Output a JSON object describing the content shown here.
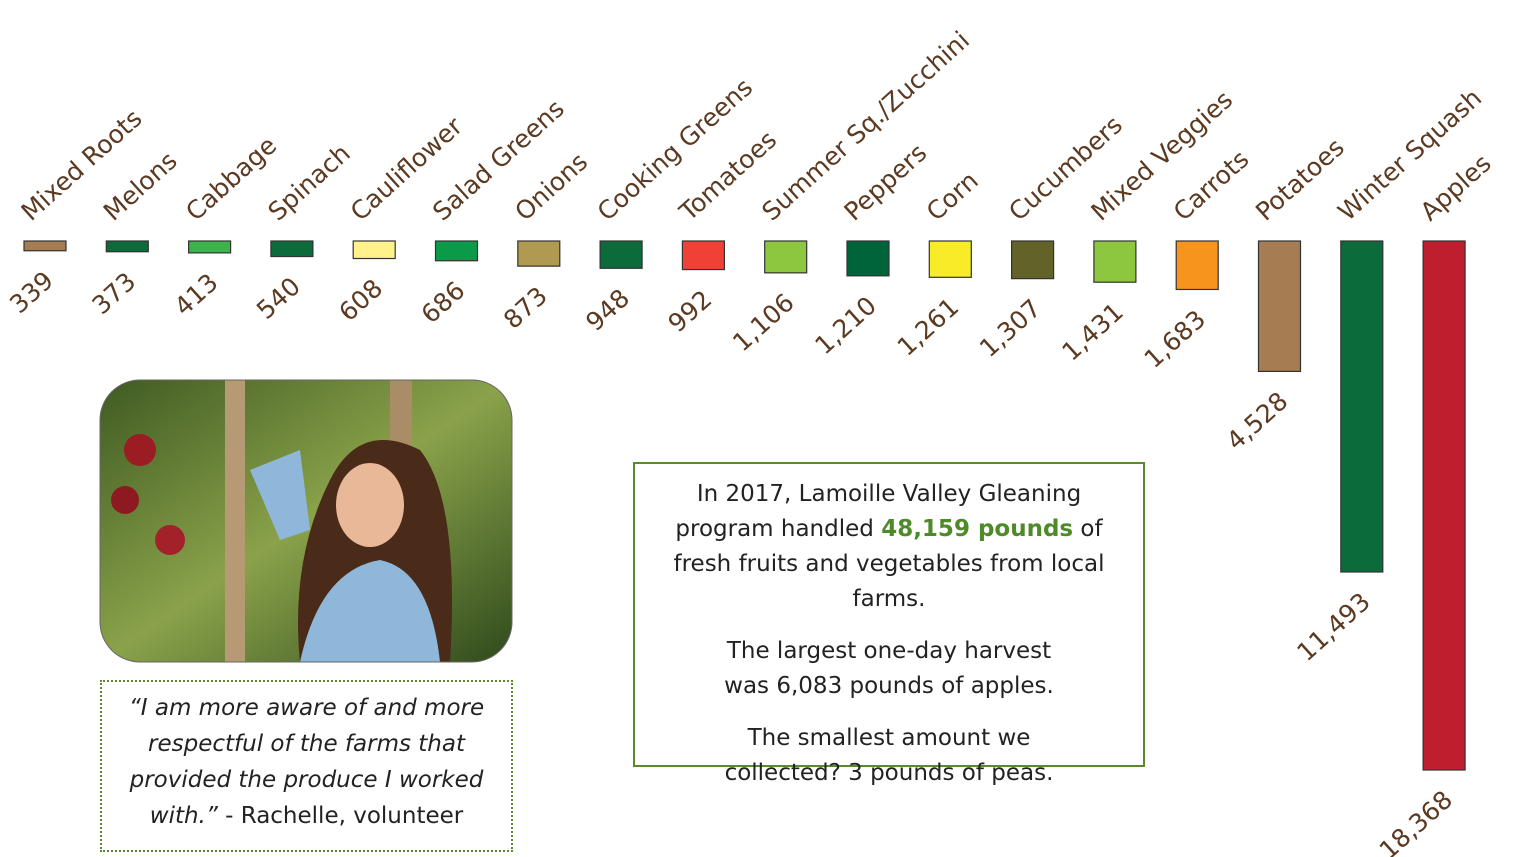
{
  "chart_data": {
    "type": "bar",
    "categories": [
      "Mixed Roots",
      "Melons",
      "Cabbage",
      "Spinach",
      "Cauliflower",
      "Salad Greens",
      "Onions",
      "Cooking Greens",
      "Tomatoes",
      "Summer Sq./Zucchini",
      "Peppers",
      "Corn",
      "Cucumbers",
      "Mixed Veggies",
      "Carrots",
      "Potatoes",
      "Winter Squash",
      "Apples"
    ],
    "values": [
      339,
      373,
      413,
      540,
      608,
      686,
      873,
      948,
      992,
      1106,
      1210,
      1261,
      1307,
      1431,
      1683,
      4528,
      11493,
      18368
    ],
    "value_labels": [
      "339",
      "373",
      "413",
      "540",
      "608",
      "686",
      "873",
      "948",
      "992",
      "1,106",
      "1,210",
      "1,261",
      "1,307",
      "1,431",
      "1,683",
      "4,528",
      "11,493",
      "18,368"
    ],
    "colors": [
      "#a67c52",
      "#0b6b3a",
      "#3cb44b",
      "#0b6b3a",
      "#fff28a",
      "#0a9a48",
      "#b09a4f",
      "#0b6b3a",
      "#ef4136",
      "#8dc63f",
      "#00643a",
      "#f7ec27",
      "#636228",
      "#8dc63f",
      "#f7941d",
      "#a67c52",
      "#0b6b3a",
      "#be1e2d"
    ]
  },
  "info_box": {
    "p1_before": "In 2017, Lamoille Valley Gleaning program handled ",
    "p1_highlight": "48,159 pounds",
    "p1_after": " of fresh fruits and vegetables from local farms.",
    "p2": "The largest one-day harvest was 6,083 pounds of apples.",
    "p3": "The smallest amount we collected? 3 pounds of peas."
  },
  "quote": {
    "text": "“I am more aware of and more respectful of the farms that provided the produce I worked with.”",
    "attribution": " - Rachelle, volunteer"
  }
}
